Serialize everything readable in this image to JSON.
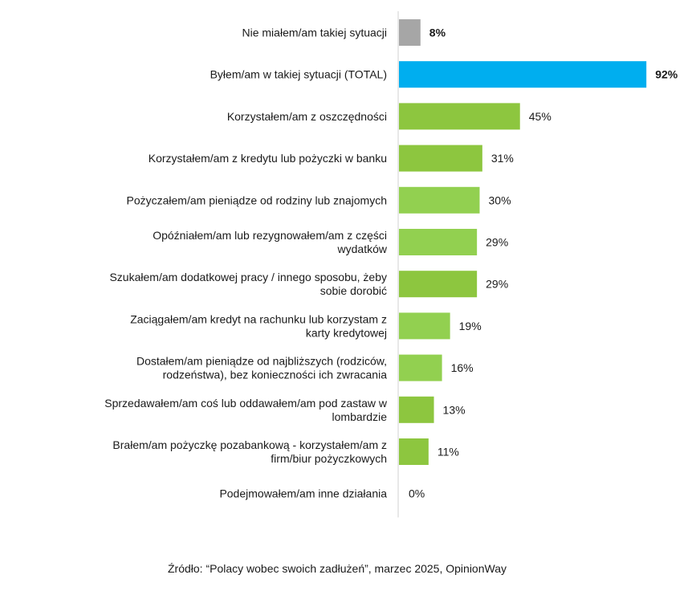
{
  "chart_data": {
    "type": "bar",
    "orientation": "horizontal",
    "categories": [
      [
        "Nie miałem/am takiej sytuacji"
      ],
      [
        "Byłem/am w takiej sytuacji (TOTAL)"
      ],
      [
        "Korzystałem/am z oszczędności"
      ],
      [
        "Korzystałem/am z kredytu lub pożyczki w banku"
      ],
      [
        "Pożyczałem/am pieniądze od rodziny lub znajomych"
      ],
      [
        "Opóźniałem/am lub rezygnowałem/am z części",
        "wydatków"
      ],
      [
        "Szukałem/am dodatkowej pracy / innego sposobu, żeby",
        "sobie dorobić"
      ],
      [
        "Zaciągałem/am kredyt na rachunku lub korzystam z",
        "karty kredytowej"
      ],
      [
        "Dostałem/am pieniądze od najbliższych (rodziców,",
        "rodzeństwa), bez konieczności ich zwracania"
      ],
      [
        "Sprzedawałem/am coś lub oddawałem/am pod zastaw w",
        "lombardzie"
      ],
      [
        "Brałem/am pożyczkę pozabankową - korzystałem/am z",
        "firm/biur pożyczkowych"
      ],
      [
        "Podejmowałem/am inne działania"
      ]
    ],
    "values": [
      8,
      92,
      45,
      31,
      30,
      29,
      29,
      19,
      16,
      13,
      11,
      0
    ],
    "value_labels": [
      "8%",
      "92%",
      "45%",
      "31%",
      "30%",
      "29%",
      "29%",
      "19%",
      "16%",
      "13%",
      "11%",
      "0%"
    ],
    "bold_labels": [
      0,
      1
    ],
    "bar_colors": [
      "#a6a6a6",
      "#00aeef",
      "#8dc63f",
      "#8dc63f",
      "#92d050",
      "#92d050",
      "#8dc63f",
      "#92d050",
      "#92d050",
      "#8dc63f",
      "#8dc63f",
      "#8dc63f"
    ],
    "xlim": [
      0,
      100
    ],
    "title": "",
    "xlabel": "",
    "ylabel": "",
    "grid": false,
    "legend": "none"
  },
  "source": "Źródło: “Polacy wobec swoich zadłużeń”, marzec 2025, OpinionWay"
}
